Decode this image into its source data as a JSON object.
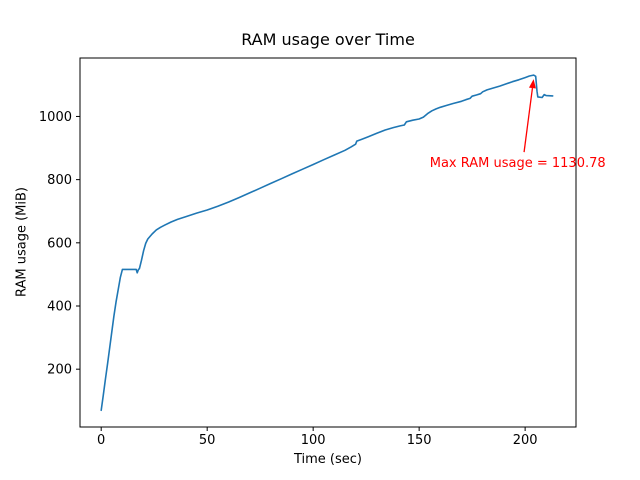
{
  "figure": {
    "background": "#ffffff"
  },
  "chart_data": {
    "type": "line",
    "title": "RAM usage over Time",
    "xlabel": "Time (sec)",
    "ylabel": "RAM usage (MiB)",
    "xlim": [
      -10,
      224
    ],
    "ylim": [
      17,
      1185
    ],
    "xticks": [
      0,
      50,
      100,
      150,
      200
    ],
    "yticks": [
      200,
      400,
      600,
      800,
      1000
    ],
    "grid": false,
    "legend": "none",
    "line_color": "#1f77b4",
    "axis_color": "#000000",
    "max_value": 1130.78,
    "series": [
      {
        "name": "RAM usage",
        "points": [
          [
            0,
            70
          ],
          [
            1,
            118
          ],
          [
            2,
            168
          ],
          [
            3,
            218
          ],
          [
            4,
            268
          ],
          [
            5,
            318
          ],
          [
            6,
            368
          ],
          [
            7,
            412
          ],
          [
            8,
            452
          ],
          [
            9,
            490
          ],
          [
            10,
            516
          ],
          [
            16.5,
            516
          ],
          [
            17,
            505
          ],
          [
            17.6,
            516
          ],
          [
            18,
            518
          ],
          [
            19,
            545
          ],
          [
            20,
            575
          ],
          [
            21,
            598
          ],
          [
            22,
            612
          ],
          [
            24,
            628
          ],
          [
            26,
            641
          ],
          [
            28,
            649
          ],
          [
            30,
            656
          ],
          [
            33,
            666
          ],
          [
            36,
            674
          ],
          [
            40,
            683
          ],
          [
            45,
            694
          ],
          [
            50,
            704
          ],
          [
            55,
            716
          ],
          [
            60,
            729
          ],
          [
            65,
            743
          ],
          [
            70,
            758
          ],
          [
            75,
            773
          ],
          [
            80,
            788
          ],
          [
            85,
            803
          ],
          [
            90,
            818
          ],
          [
            95,
            833
          ],
          [
            100,
            848
          ],
          [
            105,
            863
          ],
          [
            110,
            878
          ],
          [
            115,
            893
          ],
          [
            118,
            904
          ],
          [
            120,
            912
          ],
          [
            120.6,
            922
          ],
          [
            123,
            928
          ],
          [
            126,
            936
          ],
          [
            130,
            947
          ],
          [
            134,
            957
          ],
          [
            138,
            965
          ],
          [
            141,
            970
          ],
          [
            143,
            973
          ],
          [
            144,
            983
          ],
          [
            147,
            988
          ],
          [
            150,
            992
          ],
          [
            152,
            998
          ],
          [
            154,
            1009
          ],
          [
            156,
            1018
          ],
          [
            158,
            1024
          ],
          [
            160,
            1029
          ],
          [
            163,
            1035
          ],
          [
            166,
            1041
          ],
          [
            170,
            1048
          ],
          [
            172,
            1053
          ],
          [
            174,
            1057
          ],
          [
            175,
            1064
          ],
          [
            177,
            1068
          ],
          [
            179,
            1072
          ],
          [
            180,
            1078
          ],
          [
            182,
            1084
          ],
          [
            185,
            1090
          ],
          [
            188,
            1096
          ],
          [
            191,
            1103
          ],
          [
            194,
            1110
          ],
          [
            197,
            1116
          ],
          [
            200,
            1123
          ],
          [
            202,
            1128
          ],
          [
            204,
            1130.78
          ],
          [
            205,
            1127
          ],
          [
            205.6,
            1080
          ],
          [
            206,
            1062
          ],
          [
            208,
            1060
          ],
          [
            209,
            1069
          ],
          [
            210,
            1066
          ],
          [
            213,
            1065
          ]
        ]
      }
    ],
    "annotation": {
      "text": "Max RAM usage = 1130.78",
      "color": "#ff0000",
      "text_xy": [
        155,
        840
      ],
      "arrow_base": [
        199.5,
        887
      ],
      "arrow_tip": [
        204,
        1118
      ]
    }
  }
}
